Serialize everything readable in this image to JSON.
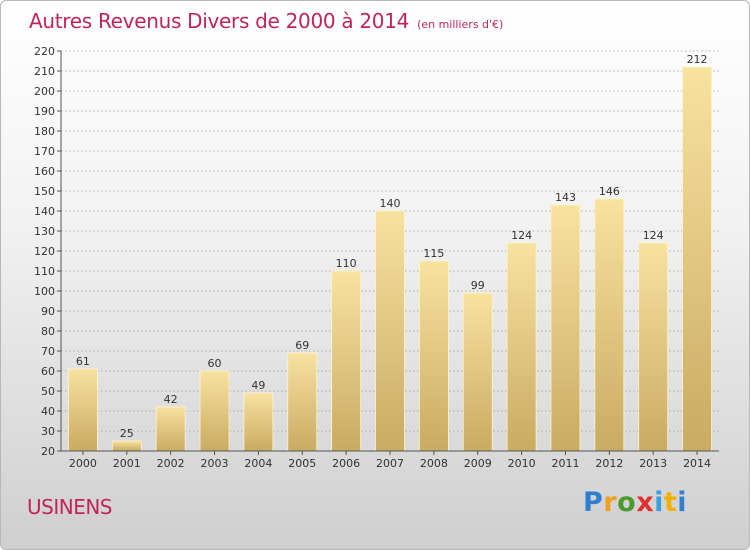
{
  "title": "Autres Revenus Divers de 2000 à 2014",
  "subtitle": "(en milliers d'€)",
  "place": "USINENS",
  "logo": {
    "text": "Proxiti",
    "letter_colors": [
      "#2f7fd0",
      "#f0a020",
      "#4a9a30",
      "#e03030",
      "#3a9fe0",
      "#f0b000",
      "#2f7fd0"
    ]
  },
  "colors": {
    "title": "#c0245c",
    "bar_top": "#f8e2a0",
    "bar_bottom": "#c9ab62",
    "grid": "#9a9a9a",
    "axis": "#555555"
  },
  "chart_data": {
    "type": "bar",
    "categories": [
      "2000",
      "2001",
      "2002",
      "2003",
      "2004",
      "2005",
      "2006",
      "2007",
      "2008",
      "2009",
      "2010",
      "2011",
      "2012",
      "2013",
      "2014"
    ],
    "values": [
      61,
      25,
      42,
      60,
      49,
      69,
      110,
      140,
      115,
      99,
      124,
      143,
      146,
      124,
      212
    ],
    "ylim": [
      20,
      220
    ],
    "yticks": [
      20,
      30,
      40,
      50,
      60,
      70,
      80,
      90,
      100,
      110,
      120,
      130,
      140,
      150,
      160,
      170,
      180,
      190,
      200,
      210,
      220
    ],
    "grid": true,
    "data_labels": true
  }
}
